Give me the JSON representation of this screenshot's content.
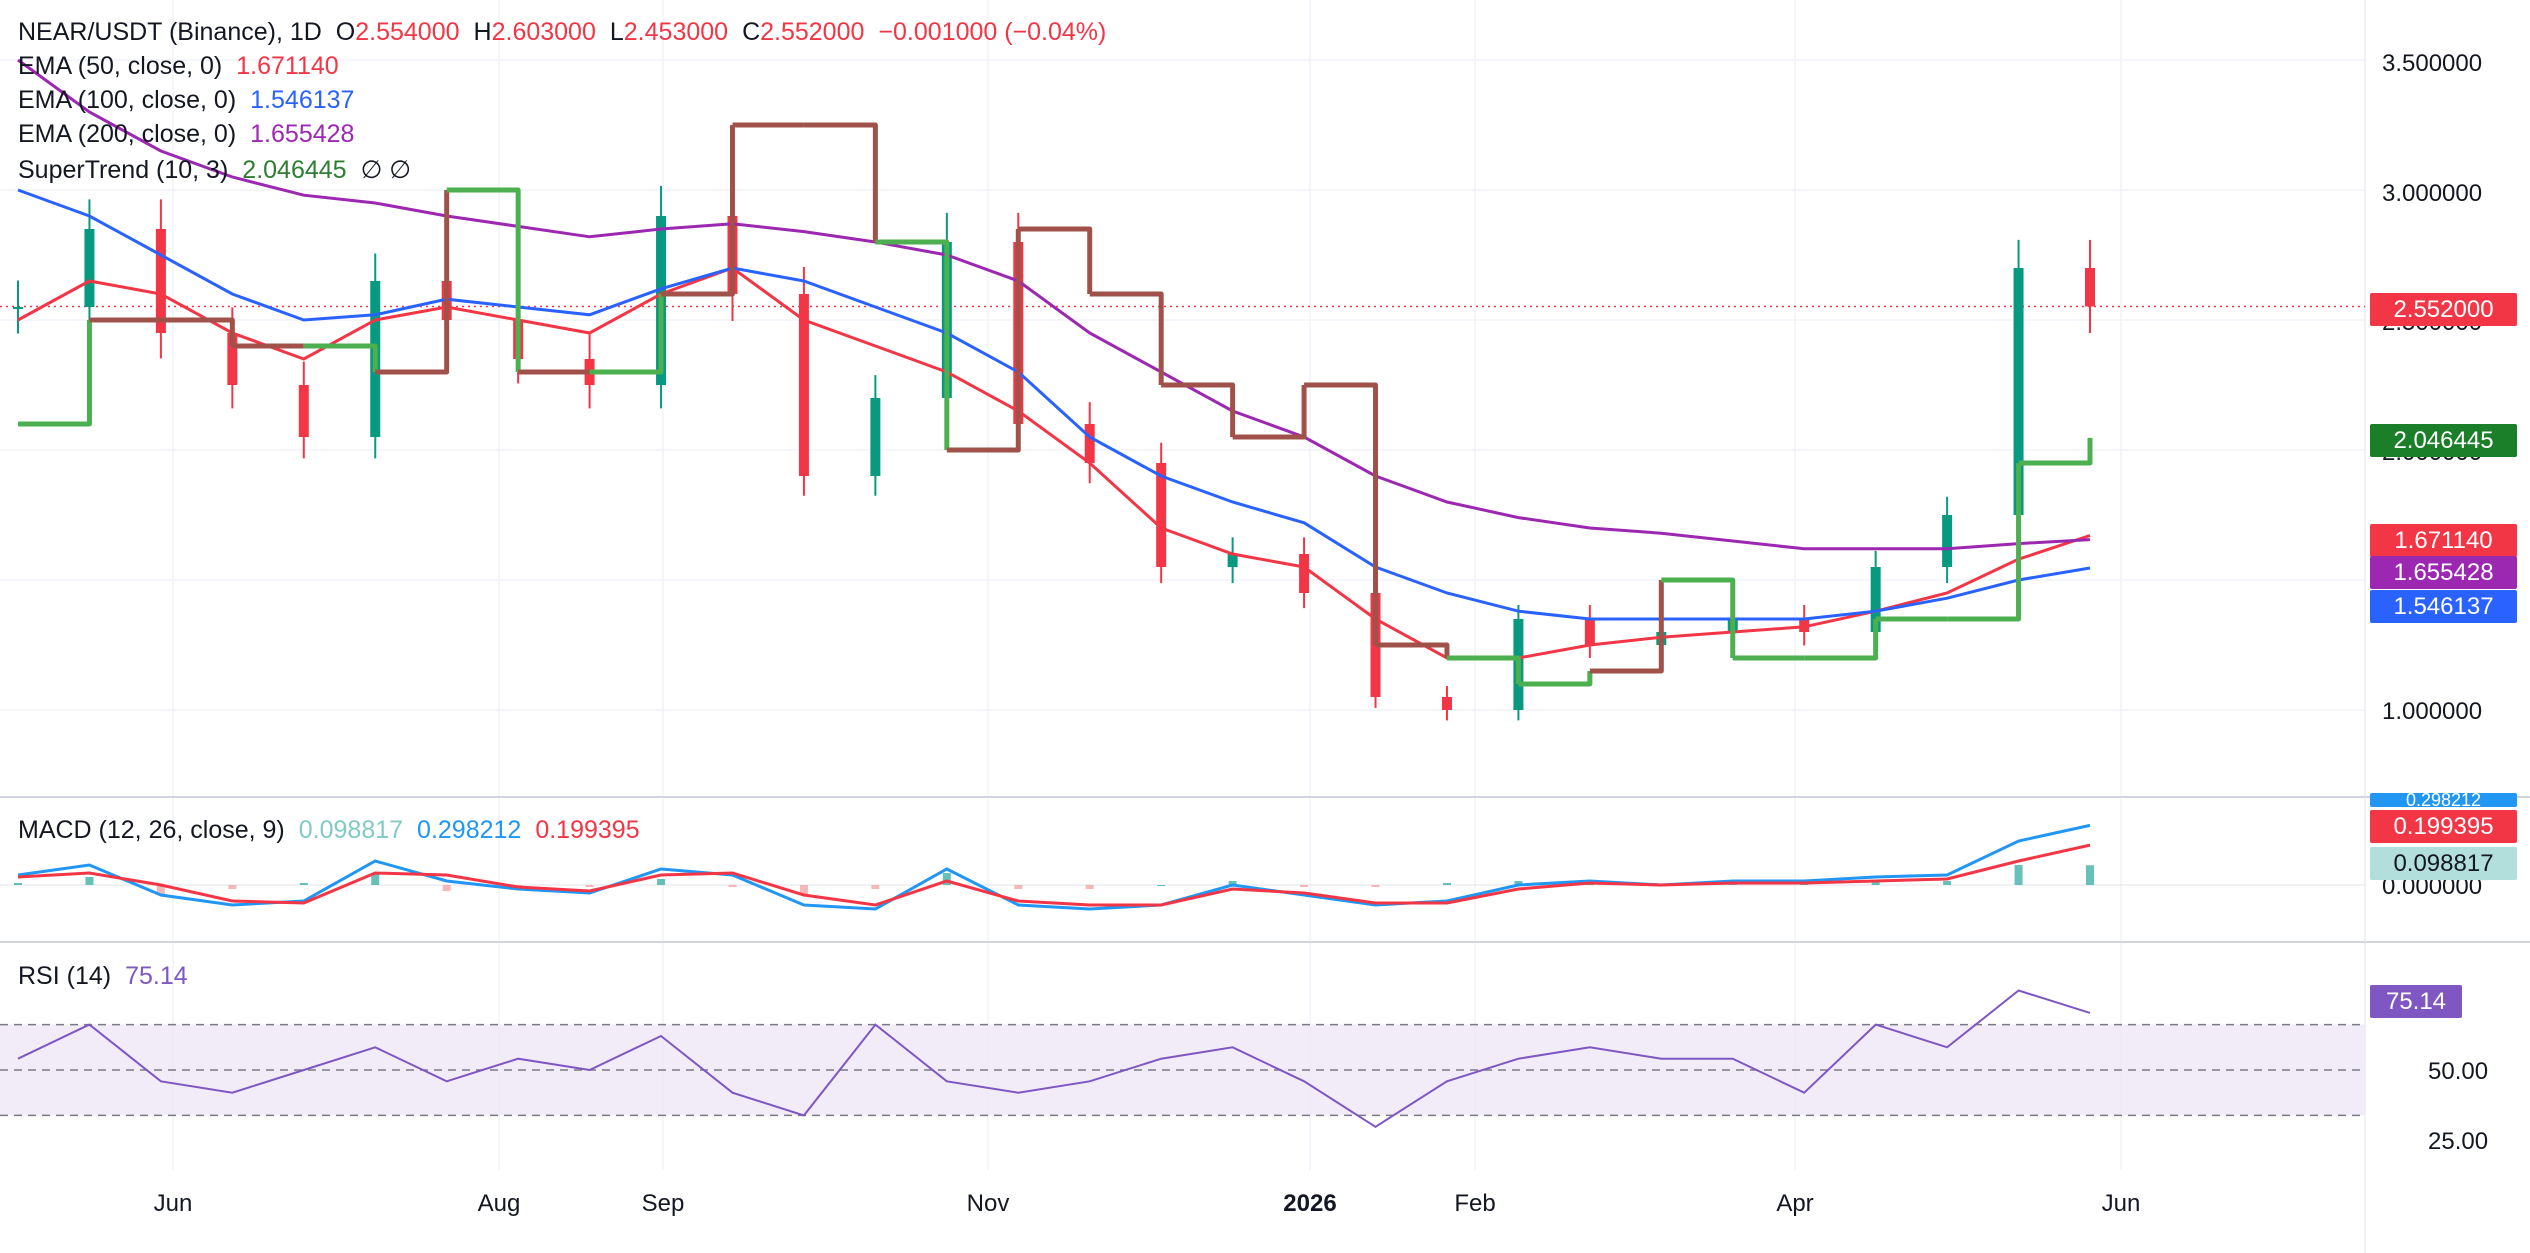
{
  "header": {
    "symbol": "NEAR/USDT (Binance), 1D",
    "o_label": "O",
    "o": "2.554000",
    "h_label": "H",
    "h": "2.603000",
    "l_label": "L",
    "l": "2.453000",
    "c_label": "C",
    "c": "2.552000",
    "change": "−0.001000 (−0.04%)"
  },
  "indicators": {
    "ema50": {
      "label": "EMA (50, close, 0)",
      "value": "1.671140",
      "color": "#f23645"
    },
    "ema100": {
      "label": "EMA (100, close, 0)",
      "value": "1.546137",
      "color": "#2962ff"
    },
    "ema200": {
      "label": "EMA (200, close, 0)",
      "value": "1.655428",
      "color": "#9c27b0"
    },
    "supertrend": {
      "label": "SuperTrend (10, 3)",
      "value": "2.046445",
      "icons": "∅ ∅",
      "up_color": "#4caf50",
      "down_color": "#a0524a"
    },
    "macd": {
      "label": "MACD (12, 26, close, 9)",
      "hist": "0.098817",
      "macd": "0.298212",
      "signal": "0.199395"
    },
    "rsi": {
      "label": "RSI (14)",
      "value": "75.14",
      "color": "#7e57c2"
    }
  },
  "price_tags": {
    "last": "2.552000",
    "supertrend": "2.046445",
    "ema50": "1.671140",
    "ema200": "1.655428",
    "ema100": "1.546137"
  },
  "macd_tags": {
    "macd_partial": "0.298212",
    "signal": "0.199395",
    "hist": "0.098817"
  },
  "price_axis": [
    "3.500000",
    "3.000000",
    "2.500000",
    "2.000000",
    "1.000000"
  ],
  "macd_axis": [
    "0.000000"
  ],
  "rsi_axis": [
    "50.00",
    "25.00"
  ],
  "rsi_tag": "75.14",
  "time_axis": [
    "Jun",
    "Aug",
    "Sep",
    "Nov",
    "2026",
    "Feb",
    "Apr",
    "Jun"
  ],
  "chart_data": {
    "type": "line",
    "title": "NEAR/USDT (Binance), 1D",
    "x": [
      "2025-05-01",
      "2025-05-15",
      "2025-06-01",
      "2025-06-15",
      "2025-07-01",
      "2025-07-15",
      "2025-08-01",
      "2025-08-15",
      "2025-09-01",
      "2025-09-15",
      "2025-10-01",
      "2025-10-10",
      "2025-10-15",
      "2025-11-01",
      "2025-11-15",
      "2025-12-01",
      "2025-12-15",
      "2026-01-01",
      "2026-01-15",
      "2026-02-01",
      "2026-02-15",
      "2026-03-01",
      "2026-03-15",
      "2026-04-01",
      "2026-04-15",
      "2026-05-01",
      "2026-05-10",
      "2026-05-17",
      "2026-05-21",
      "2026-05-24"
    ],
    "series": [
      {
        "name": "Close",
        "values": [
          2.55,
          2.85,
          2.45,
          2.25,
          2.05,
          2.65,
          2.5,
          2.35,
          2.25,
          2.9,
          2.6,
          1.9,
          2.2,
          2.8,
          2.1,
          1.95,
          1.55,
          1.6,
          1.45,
          1.05,
          1.0,
          1.35,
          1.25,
          1.3,
          1.35,
          1.3,
          1.55,
          1.75,
          2.7,
          2.552
        ]
      },
      {
        "name": "EMA (50, close, 0)",
        "values": [
          2.5,
          2.65,
          2.6,
          2.45,
          2.35,
          2.5,
          2.55,
          2.5,
          2.45,
          2.6,
          2.7,
          2.5,
          2.4,
          2.3,
          2.15,
          1.95,
          1.7,
          1.6,
          1.55,
          1.35,
          1.2,
          1.2,
          1.25,
          1.28,
          1.3,
          1.32,
          1.38,
          1.45,
          1.58,
          1.67114
        ]
      },
      {
        "name": "EMA (100, close, 0)",
        "values": [
          3.0,
          2.9,
          2.75,
          2.6,
          2.5,
          2.52,
          2.58,
          2.55,
          2.52,
          2.62,
          2.7,
          2.65,
          2.55,
          2.45,
          2.3,
          2.05,
          1.9,
          1.8,
          1.72,
          1.55,
          1.45,
          1.38,
          1.35,
          1.35,
          1.35,
          1.35,
          1.38,
          1.43,
          1.5,
          1.546137
        ]
      },
      {
        "name": "EMA (200, close, 0)",
        "values": [
          3.5,
          3.3,
          3.15,
          3.05,
          2.98,
          2.95,
          2.9,
          2.86,
          2.82,
          2.85,
          2.87,
          2.84,
          2.8,
          2.75,
          2.65,
          2.45,
          2.3,
          2.15,
          2.05,
          1.9,
          1.8,
          1.74,
          1.7,
          1.68,
          1.65,
          1.62,
          1.62,
          1.62,
          1.64,
          1.655428
        ]
      },
      {
        "name": "SuperTrend (10, 3)",
        "values": [
          2.1,
          2.5,
          2.5,
          2.4,
          2.4,
          2.3,
          3.0,
          2.3,
          2.3,
          2.6,
          3.25,
          3.25,
          2.8,
          2.0,
          2.85,
          2.6,
          2.25,
          2.05,
          2.25,
          1.25,
          1.2,
          1.1,
          1.15,
          1.5,
          1.2,
          1.2,
          1.35,
          1.35,
          1.95,
          2.046445
        ]
      }
    ],
    "ylim": [
      0.8,
      3.7
    ],
    "y_ticks": [
      1.0,
      1.5,
      2.0,
      2.5,
      3.0,
      3.5
    ],
    "x_ticks": [
      "Jun",
      "Aug",
      "Sep",
      "Nov",
      "2026",
      "Feb",
      "Apr",
      "Jun"
    ],
    "grid": true,
    "rsi": {
      "values": [
        55,
        70,
        45,
        40,
        50,
        60,
        45,
        55,
        50,
        65,
        40,
        30,
        70,
        45,
        40,
        45,
        55,
        60,
        45,
        25,
        45,
        55,
        60,
        55,
        55,
        40,
        70,
        60,
        85,
        75.14
      ],
      "overbought": 70,
      "middle": 50,
      "oversold": 30
    },
    "macd": {
      "macd": [
        0.05,
        0.1,
        -0.05,
        -0.1,
        -0.08,
        0.12,
        0.02,
        -0.02,
        -0.04,
        0.08,
        0.05,
        -0.1,
        -0.12,
        0.08,
        -0.1,
        -0.12,
        -0.1,
        0.0,
        -0.05,
        -0.1,
        -0.08,
        0.0,
        0.02,
        0.0,
        0.02,
        0.02,
        0.04,
        0.05,
        0.22,
        0.298212
      ],
      "signal": [
        0.04,
        0.06,
        0.0,
        -0.08,
        -0.09,
        0.06,
        0.05,
        -0.01,
        -0.03,
        0.05,
        0.06,
        -0.05,
        -0.1,
        0.02,
        -0.08,
        -0.1,
        -0.1,
        -0.02,
        -0.04,
        -0.09,
        -0.09,
        -0.02,
        0.01,
        0.0,
        0.01,
        0.01,
        0.02,
        0.03,
        0.12,
        0.199395
      ]
    }
  }
}
